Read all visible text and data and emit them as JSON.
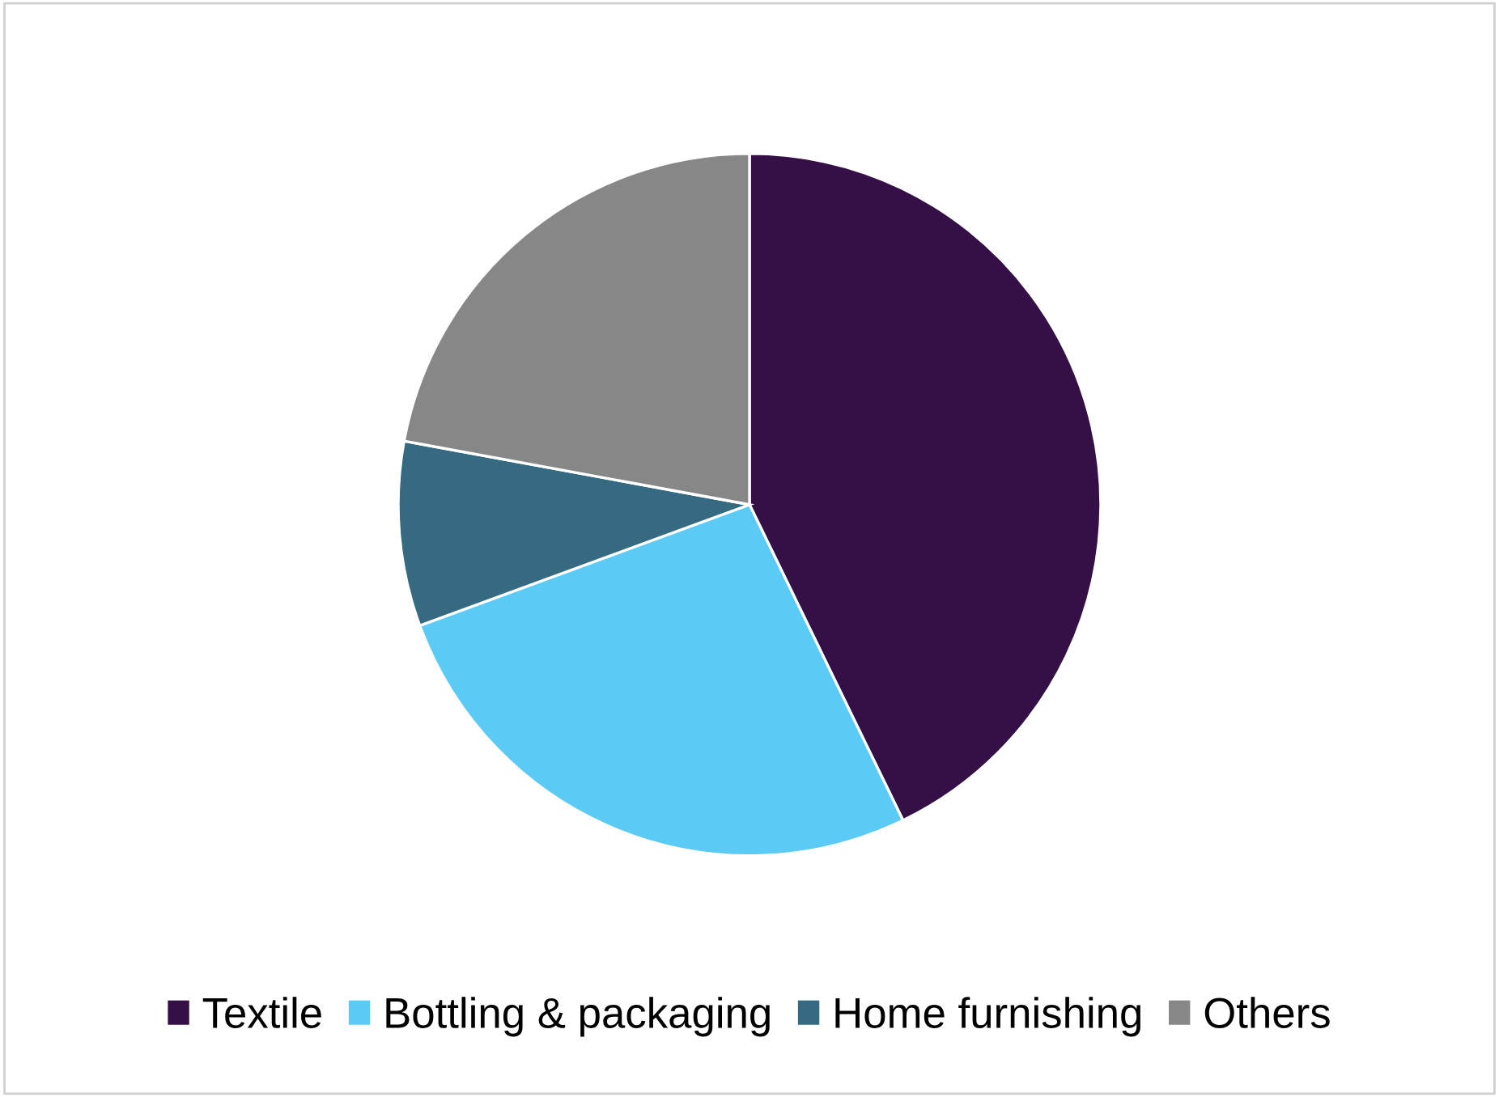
{
  "chart_data": {
    "type": "pie",
    "categories": [
      "Textile",
      "Bottling & packaging",
      "Home furnishing",
      "Others"
    ],
    "values": [
      42.8,
      26.6,
      8.5,
      22.1
    ],
    "colors": [
      "#341046",
      "#5bcbf5",
      "#356a80",
      "#878787"
    ],
    "legend": "bottom"
  }
}
